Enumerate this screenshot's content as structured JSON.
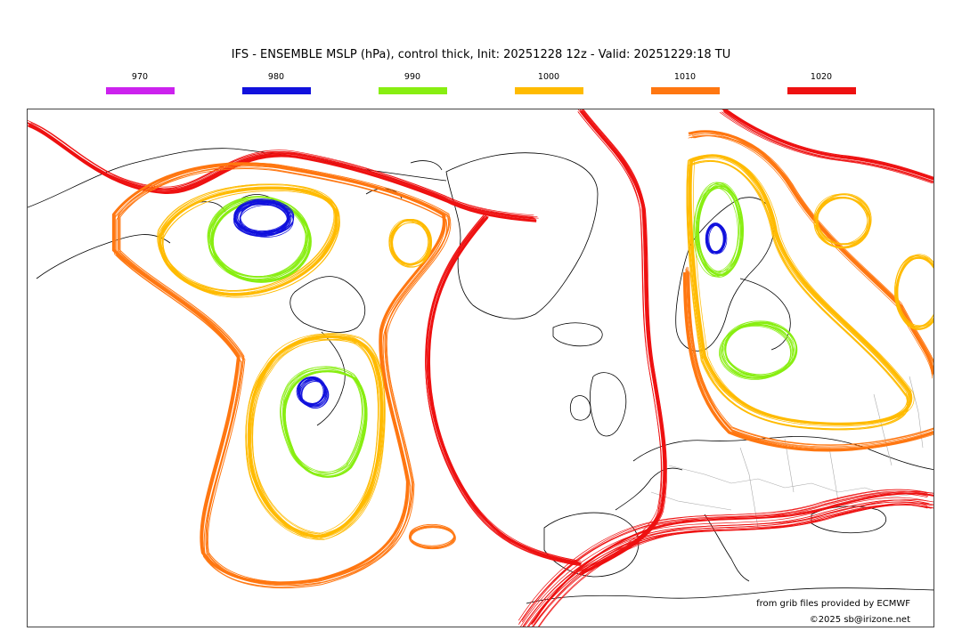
{
  "title": "IFS - ENSEMBLE MSLP (hPa), control thick, Init: 20251228 12z - Valid: 20251229:18 TU",
  "legend": [
    {
      "label": "970",
      "color": "#cc22ee"
    },
    {
      "label": "980",
      "color": "#1111dd"
    },
    {
      "label": "990",
      "color": "#88ee11"
    },
    {
      "label": "1000",
      "color": "#ffbb00"
    },
    {
      "label": "1010",
      "color": "#ff7711"
    },
    {
      "label": "1020",
      "color": "#ee1111"
    }
  ],
  "credits": {
    "line1": "from grib files provided by ECMWF",
    "line2": "©2025 sb@irizone.net"
  },
  "colors": {
    "coast": "#000000",
    "borders": "#aaaaaa"
  }
}
